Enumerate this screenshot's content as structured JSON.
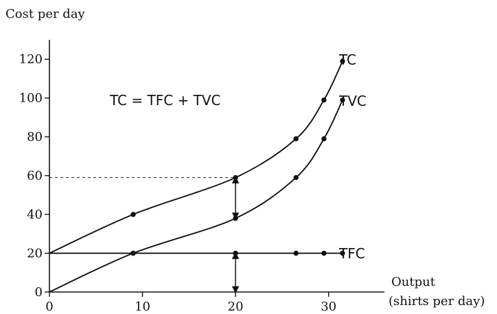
{
  "chart_data": {
    "type": "line",
    "ylabel": "Cost per day",
    "xlabel_line1": "Output",
    "xlabel_line2": "(shirts per day)",
    "xlim": [
      0,
      36
    ],
    "ylim": [
      0,
      130
    ],
    "x_ticks": [
      0,
      10,
      20,
      30
    ],
    "y_ticks": [
      0,
      20,
      40,
      60,
      80,
      100,
      120
    ],
    "annotation": "TC = TFC + TVC",
    "series": [
      {
        "name": "TC",
        "points": [
          [
            0,
            20
          ],
          [
            9,
            40
          ],
          [
            20,
            59
          ],
          [
            26.5,
            79
          ],
          [
            29.5,
            99
          ],
          [
            31.5,
            119
          ]
        ],
        "markers": [
          [
            9,
            40
          ],
          [
            20,
            59
          ],
          [
            26.5,
            79
          ],
          [
            29.5,
            99
          ],
          [
            31.5,
            119
          ]
        ]
      },
      {
        "name": "TVC",
        "points": [
          [
            0,
            0
          ],
          [
            9,
            20
          ],
          [
            20,
            38
          ],
          [
            26.5,
            59
          ],
          [
            29.5,
            79
          ],
          [
            31.5,
            99
          ]
        ],
        "markers": [
          [
            9,
            20
          ],
          [
            20,
            38
          ],
          [
            26.5,
            59
          ],
          [
            29.5,
            79
          ],
          [
            31.5,
            99
          ]
        ]
      },
      {
        "name": "TFC",
        "points": [
          [
            0,
            20
          ],
          [
            31.5,
            20
          ]
        ],
        "markers": [
          [
            9,
            20
          ],
          [
            20,
            20
          ],
          [
            26.5,
            20
          ],
          [
            29.5,
            20
          ],
          [
            31.5,
            20
          ]
        ]
      }
    ],
    "reference_line": {
      "x": 20,
      "y": 59
    },
    "arrows": [
      {
        "x": 20,
        "from": 38,
        "to": 59
      },
      {
        "x": 20,
        "from": 0,
        "to": 20
      }
    ]
  }
}
